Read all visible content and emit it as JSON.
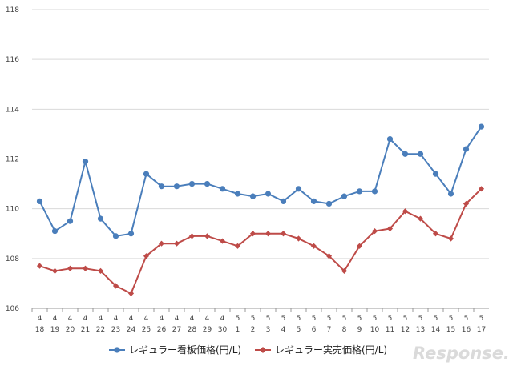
{
  "chart_data": {
    "type": "line",
    "title": "",
    "xlabel": "",
    "ylabel": "",
    "ylim": [
      106,
      118
    ],
    "yticks": [
      106,
      108,
      110,
      112,
      114,
      116,
      118
    ],
    "categories": [
      [
        "4",
        "18"
      ],
      [
        "4",
        "19"
      ],
      [
        "4",
        "20"
      ],
      [
        "4",
        "21"
      ],
      [
        "4",
        "22"
      ],
      [
        "4",
        "23"
      ],
      [
        "4",
        "24"
      ],
      [
        "4",
        "25"
      ],
      [
        "4",
        "26"
      ],
      [
        "4",
        "27"
      ],
      [
        "4",
        "28"
      ],
      [
        "4",
        "29"
      ],
      [
        "4",
        "30"
      ],
      [
        "5",
        "1"
      ],
      [
        "5",
        "2"
      ],
      [
        "5",
        "3"
      ],
      [
        "5",
        "4"
      ],
      [
        "5",
        "5"
      ],
      [
        "5",
        "6"
      ],
      [
        "5",
        "7"
      ],
      [
        "5",
        "8"
      ],
      [
        "5",
        "9"
      ],
      [
        "5",
        "10"
      ],
      [
        "5",
        "11"
      ],
      [
        "5",
        "12"
      ],
      [
        "5",
        "13"
      ],
      [
        "5",
        "14"
      ],
      [
        "5",
        "15"
      ],
      [
        "5",
        "16"
      ],
      [
        "5",
        "17"
      ]
    ],
    "series": [
      {
        "name": "レギュラー看板価格(円/L)",
        "color": "#4a7ebb",
        "marker": "circle",
        "values": [
          110.3,
          109.1,
          109.5,
          111.9,
          109.6,
          108.9,
          109.0,
          111.4,
          110.9,
          110.9,
          111.0,
          111.0,
          110.8,
          110.6,
          110.5,
          110.6,
          110.3,
          110.8,
          110.3,
          110.2,
          110.5,
          110.7,
          110.7,
          112.8,
          112.2,
          112.2,
          111.4,
          110.6,
          112.4,
          113.3
        ]
      },
      {
        "name": "レギュラー実売価格(円/L)",
        "color": "#be4b48",
        "marker": "diamond",
        "values": [
          107.7,
          107.5,
          107.6,
          107.6,
          107.5,
          106.9,
          106.6,
          108.1,
          108.6,
          108.6,
          108.9,
          108.9,
          108.7,
          108.5,
          109.0,
          109.0,
          109.0,
          108.8,
          108.5,
          108.1,
          107.5,
          108.5,
          109.1,
          109.2,
          109.9,
          109.6,
          109.0,
          108.8,
          110.2,
          110.8
        ]
      }
    ],
    "grid": true,
    "legend_position": "bottom"
  },
  "watermark": {
    "text": "Response."
  }
}
